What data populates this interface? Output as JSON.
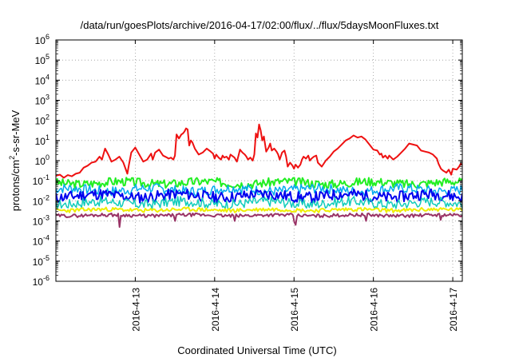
{
  "chart_data": {
    "type": "line",
    "title": "/data/run/goesPlots/archive/2016-04-17/02:00/flux/../flux/5daysMoonFluxes.txt",
    "xlabel": "Coordinated Universal Time (UTC)",
    "ylabel_parts": [
      "protons/cm",
      "2",
      "-s-sr-MeV"
    ],
    "yscale": "log",
    "ylim": [
      -6,
      6
    ],
    "y_ticks": [
      -6,
      -5,
      -4,
      -3,
      -2,
      -1,
      0,
      1,
      2,
      3,
      4,
      5,
      6
    ],
    "x_range_days": [
      0,
      5.12
    ],
    "x_ticks": [
      {
        "label": "2016-4-13",
        "day": 1.0
      },
      {
        "label": "2016-4-14",
        "day": 2.0
      },
      {
        "label": "2016-4-15",
        "day": 3.0
      },
      {
        "label": "2016-4-16",
        "day": 4.0
      },
      {
        "label": "2016-4-17",
        "day": 5.0
      }
    ],
    "grid": true,
    "series": [
      {
        "color": "#ee1111",
        "width": 2.0,
        "points": [
          [
            0.0,
            -0.75
          ],
          [
            0.05,
            -0.7
          ],
          [
            0.1,
            -0.85
          ],
          [
            0.15,
            -0.72
          ],
          [
            0.2,
            -0.78
          ],
          [
            0.25,
            -0.65
          ],
          [
            0.3,
            -0.6
          ],
          [
            0.35,
            -0.35
          ],
          [
            0.4,
            -0.25
          ],
          [
            0.45,
            -0.1
          ],
          [
            0.5,
            -0.05
          ],
          [
            0.55,
            0.2
          ],
          [
            0.58,
            0.05
          ],
          [
            0.62,
            0.6
          ],
          [
            0.66,
            0.3
          ],
          [
            0.7,
            -0.05
          ],
          [
            0.75,
            0.05
          ],
          [
            0.8,
            0.2
          ],
          [
            0.85,
            -0.1
          ],
          [
            0.9,
            -0.65
          ],
          [
            0.92,
            -0.2
          ],
          [
            0.95,
            0.4
          ],
          [
            1.0,
            0.65
          ],
          [
            1.05,
            0.3
          ],
          [
            1.1,
            -0.05
          ],
          [
            1.15,
            0.05
          ],
          [
            1.2,
            0.35
          ],
          [
            1.22,
            0.05
          ],
          [
            1.25,
            0.4
          ],
          [
            1.3,
            0.55
          ],
          [
            1.35,
            0.25
          ],
          [
            1.4,
            0.15
          ],
          [
            1.42,
            0.1
          ],
          [
            1.45,
            0.15
          ],
          [
            1.48,
            0.05
          ],
          [
            1.5,
            0.25
          ],
          [
            1.52,
            1.3
          ],
          [
            1.55,
            1.1
          ],
          [
            1.58,
            1.3
          ],
          [
            1.6,
            1.35
          ],
          [
            1.62,
            1.45
          ],
          [
            1.64,
            1.6
          ],
          [
            1.66,
            1.55
          ],
          [
            1.68,
            0.75
          ],
          [
            1.7,
            1.0
          ],
          [
            1.72,
            0.9
          ],
          [
            1.75,
            0.6
          ],
          [
            1.8,
            0.3
          ],
          [
            1.85,
            0.4
          ],
          [
            1.9,
            0.6
          ],
          [
            1.95,
            0.45
          ],
          [
            1.98,
            0.35
          ],
          [
            2.0,
            0.1
          ],
          [
            2.02,
            0.3
          ],
          [
            2.05,
            0.15
          ],
          [
            2.08,
            0.05
          ],
          [
            2.1,
            0.25
          ],
          [
            2.12,
            0.15
          ],
          [
            2.15,
            0.2
          ],
          [
            2.18,
            0.05
          ],
          [
            2.2,
            0.3
          ],
          [
            2.25,
            0.15
          ],
          [
            2.28,
            -0.05
          ],
          [
            2.3,
            0.25
          ],
          [
            2.32,
            0.55
          ],
          [
            2.35,
            0.4
          ],
          [
            2.38,
            0.3
          ],
          [
            2.4,
            0.2
          ],
          [
            2.42,
            0.05
          ],
          [
            2.45,
            0.15
          ],
          [
            2.48,
            0.0
          ],
          [
            2.5,
            0.3
          ],
          [
            2.52,
            1.35
          ],
          [
            2.54,
            1.15
          ],
          [
            2.56,
            1.8
          ],
          [
            2.58,
            1.5
          ],
          [
            2.6,
            1.0
          ],
          [
            2.62,
            1.2
          ],
          [
            2.65,
            0.45
          ],
          [
            2.68,
            0.65
          ],
          [
            2.7,
            0.85
          ],
          [
            2.72,
            0.5
          ],
          [
            2.75,
            0.6
          ],
          [
            2.78,
            0.45
          ],
          [
            2.8,
            0.3
          ],
          [
            2.82,
            0.05
          ],
          [
            2.85,
            0.4
          ],
          [
            2.88,
            0.5
          ],
          [
            2.9,
            0.2
          ],
          [
            2.92,
            -0.3
          ],
          [
            2.95,
            -0.1
          ],
          [
            2.98,
            -0.25
          ],
          [
            3.0,
            -0.4
          ],
          [
            3.02,
            -0.2
          ],
          [
            3.05,
            -0.35
          ],
          [
            3.08,
            -0.2
          ],
          [
            3.1,
            0.05
          ],
          [
            3.12,
            0.2
          ],
          [
            3.15,
            0.1
          ],
          [
            3.18,
            0.25
          ],
          [
            3.2,
            0.0
          ],
          [
            3.22,
            0.1
          ],
          [
            3.25,
            0.2
          ],
          [
            3.28,
            0.25
          ],
          [
            3.3,
            -0.1
          ],
          [
            3.35,
            -0.3
          ],
          [
            3.4,
            0.0
          ],
          [
            3.45,
            0.2
          ],
          [
            3.5,
            0.45
          ],
          [
            3.55,
            0.6
          ],
          [
            3.6,
            0.8
          ],
          [
            3.65,
            1.0
          ],
          [
            3.7,
            1.1
          ],
          [
            3.75,
            1.25
          ],
          [
            3.8,
            1.15
          ],
          [
            3.85,
            1.2
          ],
          [
            3.9,
            1.05
          ],
          [
            3.95,
            0.8
          ],
          [
            4.0,
            0.55
          ],
          [
            4.05,
            0.5
          ],
          [
            4.08,
            0.3
          ],
          [
            4.1,
            0.35
          ],
          [
            4.12,
            0.15
          ],
          [
            4.15,
            0.25
          ],
          [
            4.18,
            0.1
          ],
          [
            4.2,
            0.25
          ],
          [
            4.25,
            0.05
          ],
          [
            4.3,
            0.2
          ],
          [
            4.35,
            0.4
          ],
          [
            4.4,
            0.6
          ],
          [
            4.45,
            0.85
          ],
          [
            4.5,
            0.8
          ],
          [
            4.55,
            0.75
          ],
          [
            4.6,
            0.5
          ],
          [
            4.65,
            0.45
          ],
          [
            4.7,
            0.4
          ],
          [
            4.75,
            0.3
          ],
          [
            4.8,
            0.1
          ],
          [
            4.82,
            -0.15
          ],
          [
            4.85,
            -0.4
          ],
          [
            4.88,
            -0.5
          ],
          [
            4.9,
            -0.55
          ],
          [
            4.92,
            -0.6
          ],
          [
            4.95,
            -0.45
          ],
          [
            4.98,
            -0.7
          ],
          [
            5.0,
            -0.4
          ],
          [
            5.05,
            -0.45
          ],
          [
            5.08,
            -0.3
          ],
          [
            5.1,
            -0.15
          ],
          [
            5.12,
            -0.2
          ]
        ]
      },
      {
        "color": "#22ee22",
        "width": 2.0,
        "base": -1.1,
        "amp": 0.22,
        "seed": 3
      },
      {
        "color": "#00aaee",
        "width": 1.5,
        "base": -1.45,
        "amp": 0.25,
        "seed": 7
      },
      {
        "color": "#0000ee",
        "width": 2.0,
        "base": -1.75,
        "amp": 0.28,
        "seed": 11
      },
      {
        "color": "#11ccbb",
        "width": 1.5,
        "base": -2.1,
        "amp": 0.25,
        "seed": 17
      },
      {
        "color": "#eeee00",
        "width": 2.0,
        "base": -2.45,
        "amp": 0.1,
        "seed": 23
      },
      {
        "color": "#993366",
        "width": 2.0,
        "base": -2.72,
        "amp": 0.08,
        "seed": 29,
        "dips": [
          [
            0.8,
            -3.3
          ],
          [
            1.5,
            -3.0
          ],
          [
            2.25,
            -3.0
          ],
          [
            3.0,
            -3.05
          ],
          [
            3.02,
            -3.2
          ],
          [
            3.9,
            -3.0
          ],
          [
            4.85,
            -2.95
          ]
        ]
      }
    ]
  }
}
